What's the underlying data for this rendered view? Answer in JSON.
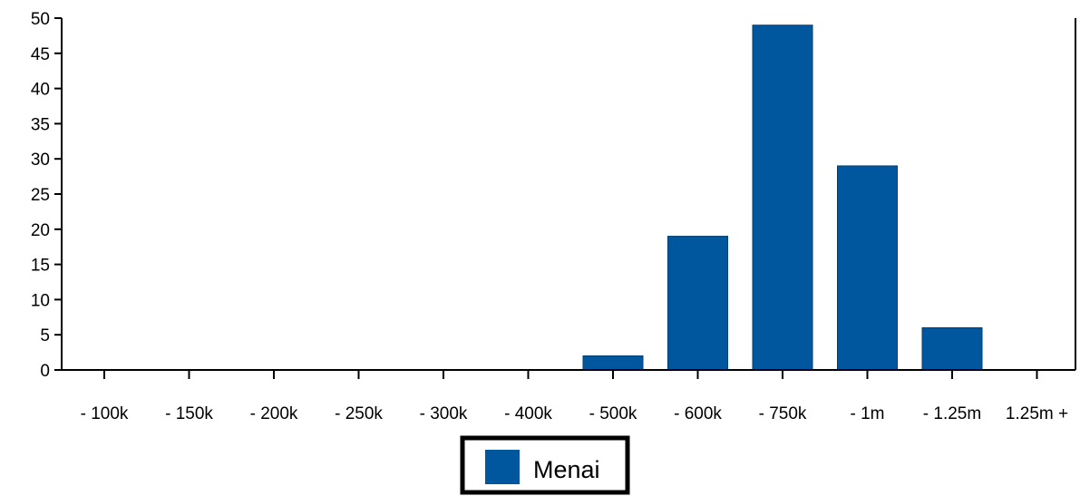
{
  "chart_data": {
    "type": "bar",
    "categories": [
      "- 100k",
      "- 150k",
      "- 200k",
      "- 250k",
      "- 300k",
      "- 400k",
      "- 500k",
      "- 600k",
      "- 750k",
      "- 1m",
      "- 1.25m",
      "1.25m +"
    ],
    "series": [
      {
        "name": "Menai",
        "values": [
          0,
          0,
          0,
          0,
          0,
          0,
          2,
          19,
          49,
          29,
          6,
          0
        ]
      }
    ],
    "ylim": [
      0,
      50
    ],
    "yticks": [
      0,
      5,
      10,
      15,
      20,
      25,
      30,
      35,
      40,
      45,
      50
    ],
    "legend_position": "bottom-center",
    "grid": false,
    "colors": {
      "bar": "#00579E",
      "axis": "#000000"
    }
  }
}
